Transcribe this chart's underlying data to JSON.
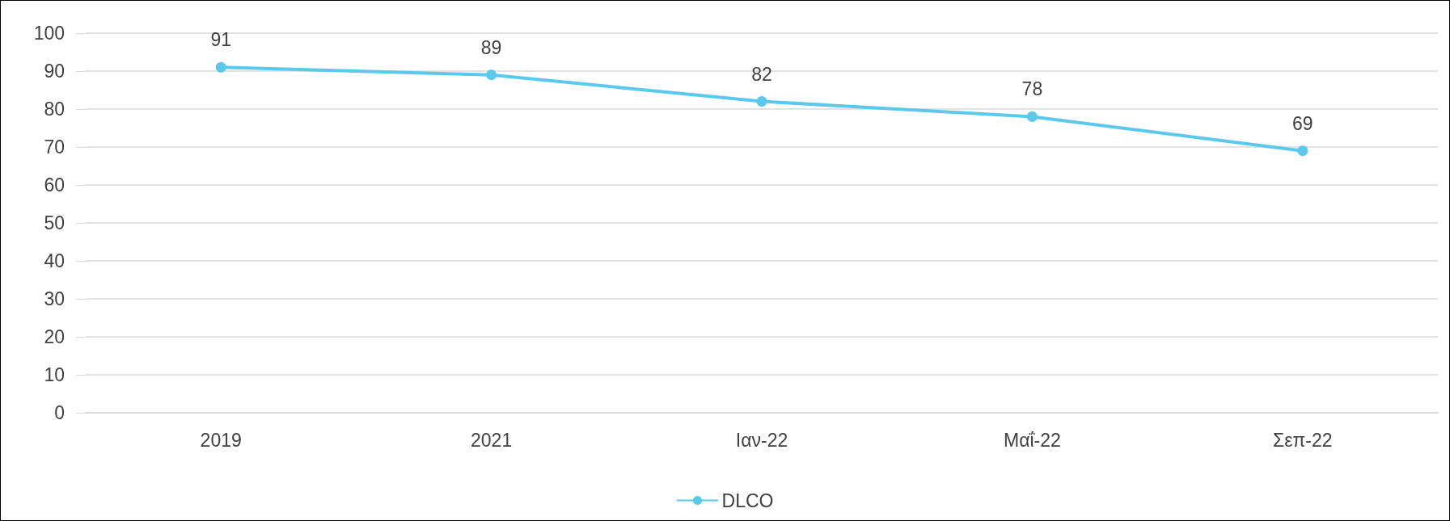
{
  "chart_data": {
    "type": "line",
    "categories": [
      "2019",
      "2021",
      "Ιαν-22",
      "Μαΐ-22",
      "Σεπ-22"
    ],
    "series": [
      {
        "name": "DLCO",
        "color": "#5bc8ec",
        "values": [
          91,
          89,
          82,
          78,
          69
        ]
      }
    ],
    "ylim": [
      0,
      100
    ],
    "yticks": [
      0,
      10,
      20,
      30,
      40,
      50,
      60,
      70,
      80,
      90,
      100
    ],
    "grid": "y",
    "legend": "bottom",
    "marker": "circle",
    "line_style": "solid",
    "data_labels": true
  }
}
